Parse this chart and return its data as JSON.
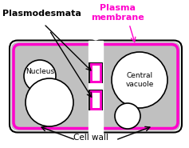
{
  "bg_color": "#ffffff",
  "cell_wall_color": "#000000",
  "plasma_membrane_color": "#ff00cc",
  "cytoplasm_color": "#c0c0c0",
  "label_color_black": "#000000",
  "label_color_magenta": "#ff00cc",
  "nucleus_label": "Nucleus",
  "central_vacuole_label": "Central\nvacuole",
  "plasmodesmata_label": "Plasmodesmata",
  "plasma_membrane_label": "Plasma\nmembrane",
  "cell_wall_label": "Cell wall",
  "figw": 2.37,
  "figh": 1.85,
  "dpi": 100
}
